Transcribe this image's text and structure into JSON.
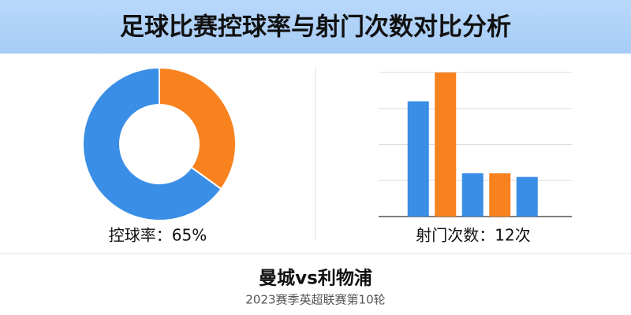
{
  "title": "足球比赛控球率与射门次数对比分析",
  "chart_data": [
    {
      "type": "pie",
      "donut": true,
      "categories": [
        null,
        null
      ],
      "values": [
        65,
        35
      ],
      "colors": [
        "#3a8ee6",
        "#f7821e"
      ],
      "caption": "控球率：65%"
    },
    {
      "type": "bar",
      "categories": [
        null,
        null,
        null,
        null,
        null
      ],
      "values": [
        3.2,
        4,
        1.2,
        1.2,
        1.1
      ],
      "colors": [
        "#3a8ee6",
        "#f7821e",
        "#3a8ee6",
        "#f7821e",
        "#3a8ee6"
      ],
      "ylim": [
        0,
        4
      ],
      "yticks": [
        0,
        1,
        2,
        3,
        4
      ],
      "grid": true,
      "caption": "射门次数：12次"
    }
  ],
  "footer": {
    "match": "曼城vs利物浦",
    "subtitle": "2023赛季英超联赛第10轮"
  }
}
